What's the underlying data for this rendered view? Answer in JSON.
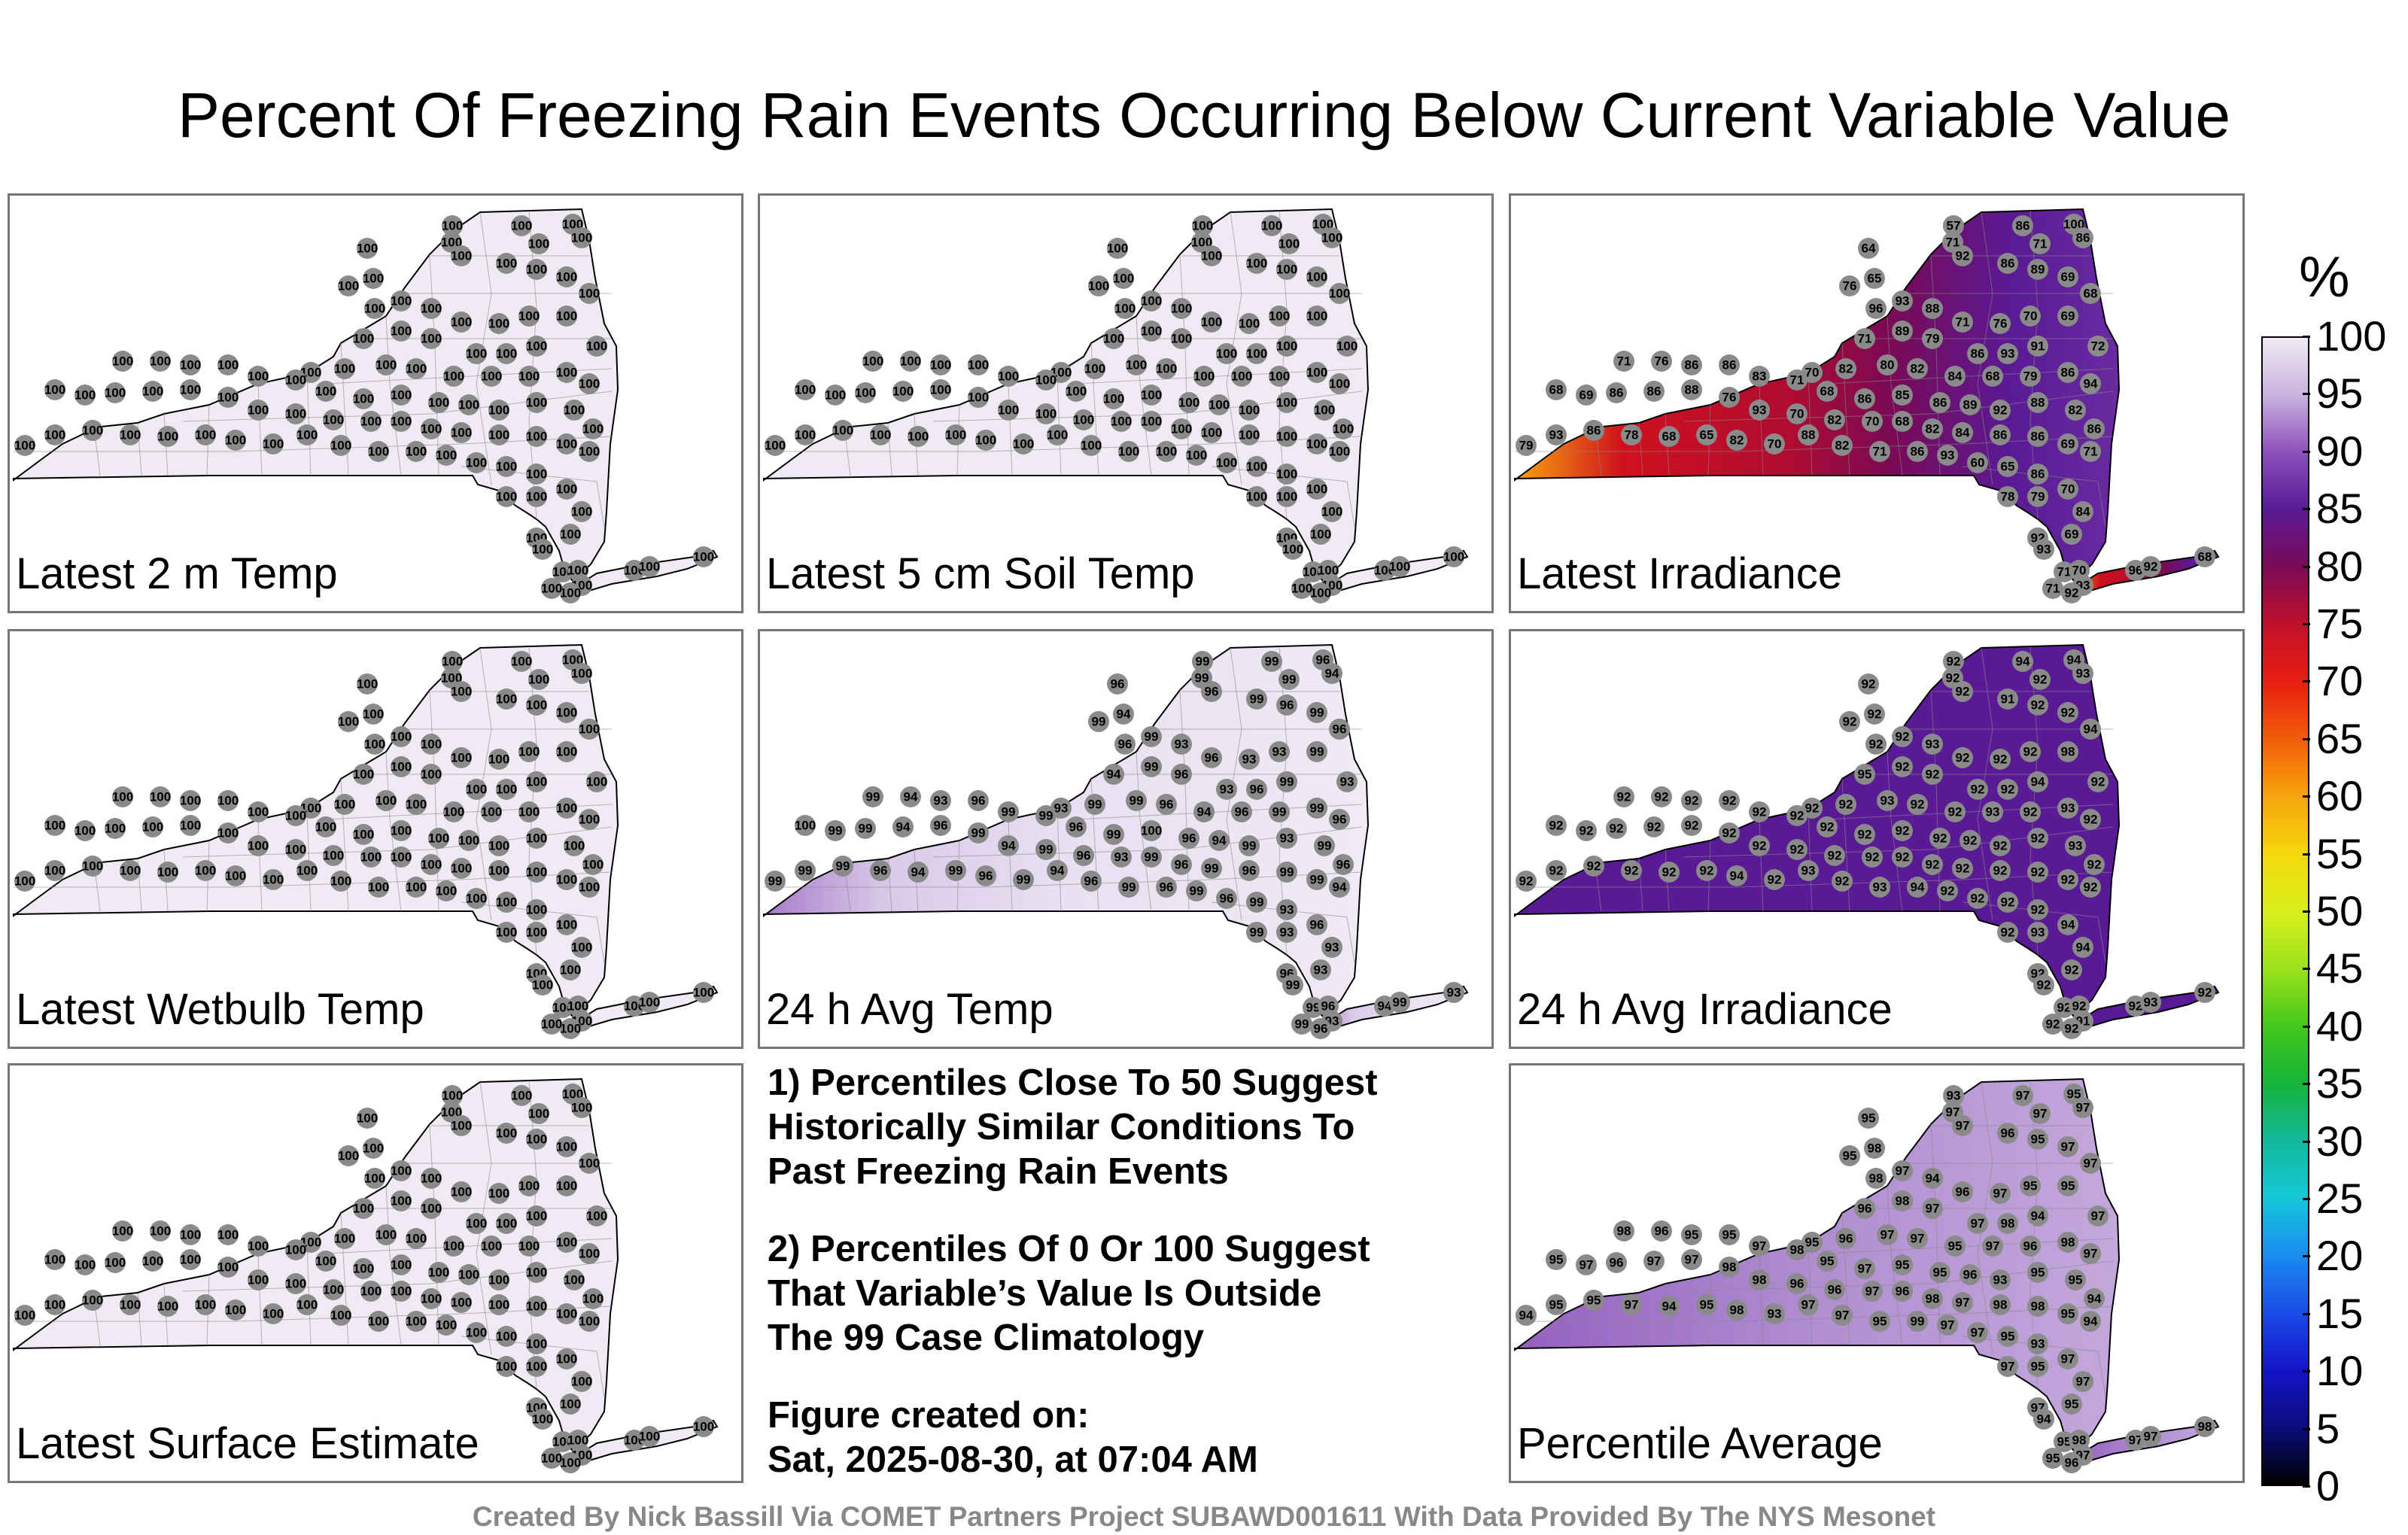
{
  "title": "Percent Of Freezing Rain Events Occurring Below Current Variable Value",
  "panels": [
    {
      "label": "Latest 2 m Temp",
      "fill": "#efeaf4",
      "mode": "uniform",
      "value": "100"
    },
    {
      "label": "Latest 5 cm Soil Temp",
      "fill": "#efeaf4",
      "mode": "uniform",
      "value": "100"
    },
    {
      "label": "Latest Irradiance",
      "fill": "#c0102b",
      "mode": "irradiance"
    },
    {
      "label": "Latest Wetbulb Temp",
      "fill": "#efeaf4",
      "mode": "uniform",
      "value": "100"
    },
    {
      "label": "24 h Avg Temp",
      "fill": "#e6dcef",
      "mode": "avgtemp"
    },
    {
      "label": "24 h Avg Irradiance",
      "fill": "#5a1a95",
      "mode": "avgirr"
    },
    {
      "label": "Latest Surface Estimate",
      "fill": "#efeaf4",
      "mode": "uniform",
      "value": "100"
    },
    {
      "label": "Percentile Average",
      "fill": "#a77cc9",
      "mode": "average"
    }
  ],
  "notes": {
    "note1_line1": "1) Percentiles Close To 50 Suggest",
    "note1_line2": "Historically Similar Conditions To",
    "note1_line3": "Past Freezing Rain Events",
    "note2_line1": "2) Percentiles Of 0 Or 100 Suggest",
    "note2_line2": "That Variable’s Value Is Outside",
    "note2_line3": "The 99 Case Climatology",
    "created_label": "Figure created on:",
    "created_value": "Sat, 2025-08-30, at 07:04 AM"
  },
  "colorbar": {
    "unit": "%",
    "ticks": [
      "100",
      "95",
      "90",
      "85",
      "80",
      "75",
      "70",
      "65",
      "60",
      "55",
      "50",
      "45",
      "40",
      "35",
      "30",
      "25",
      "20",
      "15",
      "10",
      "5",
      "0"
    ],
    "colors": [
      "#efeaf4",
      "#c9b2dd",
      "#8d4fbd",
      "#5a1a95",
      "#7a0a55",
      "#c0102b",
      "#e81e12",
      "#f25c0c",
      "#f7a40c",
      "#f4d80c",
      "#d8ef1a",
      "#9be21c",
      "#44c81c",
      "#15b43a",
      "#12b89a",
      "#14c8d8",
      "#1a8cf0",
      "#1a4ce8",
      "#1414c8",
      "#0c0c7c",
      "#000000"
    ]
  },
  "irradiance_values": [
    "57",
    "71",
    "86",
    "100",
    "86",
    "71",
    "64",
    "76",
    "65",
    "92",
    "86",
    "89",
    "69",
    "96",
    "93",
    "88",
    "71",
    "76",
    "70",
    "69",
    "68",
    "72",
    "91",
    "93",
    "86",
    "79",
    "89",
    "71",
    "70",
    "82",
    "80",
    "82",
    "84",
    "68",
    "79",
    "86",
    "94",
    "71",
    "76",
    "86",
    "86",
    "83",
    "71",
    "68",
    "86",
    "85",
    "86",
    "89",
    "92",
    "88",
    "82",
    "86",
    "68",
    "69",
    "86",
    "86",
    "88",
    "76",
    "93",
    "70",
    "82",
    "70",
    "68",
    "82",
    "84",
    "86",
    "86",
    "69",
    "71",
    "79",
    "93",
    "86",
    "78",
    "68",
    "65",
    "82",
    "70",
    "88",
    "82",
    "71",
    "86",
    "93",
    "60",
    "65",
    "86",
    "70",
    "84",
    "79",
    "78",
    "92",
    "69",
    "71",
    "70",
    "93",
    "92",
    "71",
    "96",
    "68",
    "92",
    "93",
    "71",
    "84",
    "94",
    "68",
    "93",
    "71",
    "96",
    "92",
    "87",
    "92",
    "86",
    "93"
  ],
  "avgtemp_values": [
    "99",
    "99",
    "99",
    "96",
    "94",
    "99",
    "96",
    "99",
    "94",
    "96",
    "99",
    "96",
    "99",
    "96",
    "99",
    "93",
    "96",
    "93",
    "93",
    "99",
    "96",
    "93",
    "99",
    "96",
    "93",
    "96",
    "99",
    "94",
    "93",
    "99",
    "99",
    "96",
    "94",
    "96",
    "99",
    "99",
    "96",
    "99",
    "94",
    "93",
    "96",
    "99",
    "99",
    "96",
    "99",
    "100",
    "96",
    "94",
    "99",
    "93",
    "99",
    "96",
    "100",
    "99",
    "99",
    "94",
    "96",
    "99",
    "94",
    "99",
    "96",
    "93",
    "99",
    "96",
    "99",
    "96",
    "99",
    "99",
    "94"
  ],
  "avgirr_values": [
    "92",
    "92",
    "94",
    "94",
    "93",
    "92",
    "92",
    "92",
    "92",
    "92",
    "91",
    "92",
    "92",
    "92",
    "92",
    "93",
    "92",
    "92",
    "92",
    "98",
    "94",
    "92",
    "94",
    "92",
    "92",
    "92",
    "92",
    "95",
    "92",
    "92",
    "93",
    "92",
    "92",
    "93",
    "92",
    "93",
    "92",
    "92",
    "92",
    "92",
    "92",
    "92",
    "92",
    "92",
    "92",
    "92",
    "92",
    "92",
    "92",
    "92",
    "93",
    "92",
    "92",
    "92",
    "92",
    "92",
    "92",
    "92",
    "92",
    "92",
    "92",
    "92",
    "92",
    "92",
    "92",
    "92",
    "92",
    "92",
    "92",
    "92",
    "92",
    "92",
    "92",
    "92",
    "92",
    "94",
    "92",
    "93",
    "92",
    "93",
    "94",
    "92",
    "92"
  ],
  "average_values": [
    "93",
    "97",
    "97",
    "95",
    "97",
    "97",
    "95",
    "95",
    "98",
    "97",
    "96",
    "95",
    "97",
    "98",
    "97",
    "94",
    "96",
    "97",
    "95",
    "95",
    "97",
    "97",
    "94",
    "98",
    "97",
    "97",
    "98",
    "96",
    "95",
    "96",
    "97",
    "97",
    "95",
    "97",
    "96",
    "98",
    "97",
    "98",
    "96",
    "95",
    "95",
    "97",
    "98",
    "95",
    "97",
    "95",
    "95",
    "96",
    "93",
    "95",
    "95",
    "94",
    "95",
    "97",
    "96",
    "97",
    "97",
    "98",
    "98",
    "96",
    "96",
    "97",
    "96",
    "98",
    "97",
    "98",
    "98",
    "95",
    "94",
    "94",
    "95",
    "95",
    "97",
    "94",
    "95",
    "98",
    "93",
    "97",
    "97",
    "95",
    "99",
    "97",
    "97",
    "95"
  ],
  "footer": "Created By Nick Bassill Via COMET Partners Project SUBAWD001611 With Data Provided By The NYS Mesonet"
}
